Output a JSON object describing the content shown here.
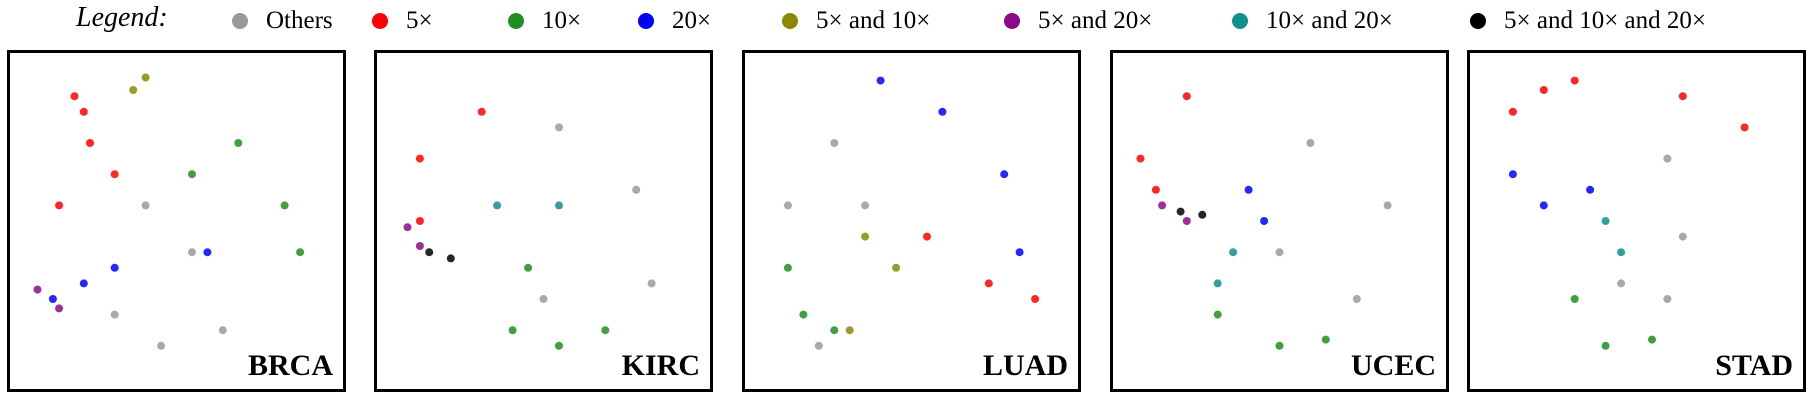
{
  "legend": {
    "title": "Legend:",
    "items": [
      {
        "key": "others",
        "label": "Others",
        "color": "#9a9a9a"
      },
      {
        "key": "x5",
        "label": "5×",
        "color": "#ff0000"
      },
      {
        "key": "x10",
        "label": "10×",
        "color": "#1f8f1f"
      },
      {
        "key": "x20",
        "label": "20×",
        "color": "#0000ff"
      },
      {
        "key": "x5_10",
        "label": "5× and 10×",
        "color": "#8a8a00"
      },
      {
        "key": "x5_20",
        "label": "5× and 20×",
        "color": "#8a0a8a"
      },
      {
        "key": "x10_20",
        "label": "10× and 20×",
        "color": "#0f8f8f"
      },
      {
        "key": "x5_10_20",
        "label": "5× and 10× and 20×",
        "color": "#000000"
      }
    ]
  },
  "chart_data": [
    {
      "type": "scatter",
      "label": "BRCA",
      "point_groups": [
        {
          "category": "x5",
          "points": [
            [
              0.17,
              0.1
            ],
            [
              0.22,
              0.25
            ],
            [
              0.12,
              0.45
            ],
            [
              0.3,
              0.35
            ],
            [
              0.2,
              0.15
            ]
          ]
        },
        {
          "category": "x5_10",
          "points": [
            [
              0.36,
              0.08
            ],
            [
              0.4,
              0.04
            ]
          ]
        },
        {
          "category": "x10",
          "points": [
            [
              0.55,
              0.35
            ],
            [
              0.7,
              0.25
            ],
            [
              0.85,
              0.45
            ],
            [
              0.9,
              0.6
            ]
          ]
        },
        {
          "category": "x20",
          "points": [
            [
              0.1,
              0.75
            ],
            [
              0.2,
              0.7
            ],
            [
              0.3,
              0.65
            ],
            [
              0.6,
              0.6
            ]
          ]
        },
        {
          "category": "x5_20",
          "points": [
            [
              0.05,
              0.72
            ],
            [
              0.12,
              0.78
            ]
          ]
        },
        {
          "category": "others",
          "points": [
            [
              0.4,
              0.45
            ],
            [
              0.55,
              0.6
            ],
            [
              0.65,
              0.85
            ],
            [
              0.45,
              0.9
            ],
            [
              0.3,
              0.8
            ]
          ]
        }
      ]
    },
    {
      "type": "scatter",
      "label": "KIRC",
      "point_groups": [
        {
          "category": "x5",
          "points": [
            [
              0.3,
              0.15
            ],
            [
              0.1,
              0.3
            ],
            [
              0.1,
              0.5
            ]
          ]
        },
        {
          "category": "x5_20",
          "points": [
            [
              0.06,
              0.52
            ],
            [
              0.1,
              0.58
            ]
          ]
        },
        {
          "category": "x5_10_20",
          "points": [
            [
              0.13,
              0.6
            ],
            [
              0.2,
              0.62
            ]
          ]
        },
        {
          "category": "x10_20",
          "points": [
            [
              0.35,
              0.45
            ],
            [
              0.55,
              0.45
            ]
          ]
        },
        {
          "category": "x10",
          "points": [
            [
              0.45,
              0.65
            ],
            [
              0.4,
              0.85
            ],
            [
              0.55,
              0.9
            ],
            [
              0.7,
              0.85
            ]
          ]
        },
        {
          "category": "others",
          "points": [
            [
              0.55,
              0.2
            ],
            [
              0.8,
              0.4
            ],
            [
              0.85,
              0.7
            ],
            [
              0.5,
              0.75
            ]
          ]
        }
      ]
    },
    {
      "type": "scatter",
      "label": "LUAD",
      "point_groups": [
        {
          "category": "x20",
          "points": [
            [
              0.4,
              0.05
            ],
            [
              0.6,
              0.15
            ],
            [
              0.8,
              0.35
            ],
            [
              0.85,
              0.6
            ]
          ]
        },
        {
          "category": "x5",
          "points": [
            [
              0.55,
              0.55
            ],
            [
              0.75,
              0.7
            ],
            [
              0.9,
              0.75
            ]
          ]
        },
        {
          "category": "x5_10",
          "points": [
            [
              0.35,
              0.55
            ],
            [
              0.45,
              0.65
            ],
            [
              0.3,
              0.85
            ]
          ]
        },
        {
          "category": "x10",
          "points": [
            [
              0.1,
              0.65
            ],
            [
              0.15,
              0.8
            ],
            [
              0.25,
              0.85
            ]
          ]
        },
        {
          "category": "others",
          "points": [
            [
              0.25,
              0.25
            ],
            [
              0.1,
              0.45
            ],
            [
              0.35,
              0.45
            ],
            [
              0.2,
              0.9
            ]
          ]
        }
      ]
    },
    {
      "type": "scatter",
      "label": "UCEC",
      "point_groups": [
        {
          "category": "x5",
          "points": [
            [
              0.2,
              0.1
            ],
            [
              0.05,
              0.3
            ],
            [
              0.1,
              0.4
            ]
          ]
        },
        {
          "category": "x5_20",
          "points": [
            [
              0.12,
              0.45
            ],
            [
              0.2,
              0.5
            ]
          ]
        },
        {
          "category": "x5_10_20",
          "points": [
            [
              0.18,
              0.47
            ],
            [
              0.25,
              0.48
            ]
          ]
        },
        {
          "category": "x20",
          "points": [
            [
              0.4,
              0.4
            ],
            [
              0.45,
              0.5
            ]
          ]
        },
        {
          "category": "x10_20",
          "points": [
            [
              0.35,
              0.6
            ],
            [
              0.3,
              0.7
            ]
          ]
        },
        {
          "category": "x10",
          "points": [
            [
              0.3,
              0.8
            ],
            [
              0.5,
              0.9
            ],
            [
              0.65,
              0.88
            ]
          ]
        },
        {
          "category": "others",
          "points": [
            [
              0.6,
              0.25
            ],
            [
              0.85,
              0.45
            ],
            [
              0.75,
              0.75
            ],
            [
              0.5,
              0.6
            ]
          ]
        }
      ]
    },
    {
      "type": "scatter",
      "label": "STAD",
      "point_groups": [
        {
          "category": "x5",
          "points": [
            [
              0.1,
              0.15
            ],
            [
              0.2,
              0.08
            ],
            [
              0.3,
              0.05
            ],
            [
              0.65,
              0.1
            ],
            [
              0.85,
              0.2
            ]
          ]
        },
        {
          "category": "x20",
          "points": [
            [
              0.1,
              0.35
            ],
            [
              0.2,
              0.45
            ],
            [
              0.35,
              0.4
            ]
          ]
        },
        {
          "category": "x10_20",
          "points": [
            [
              0.4,
              0.5
            ],
            [
              0.45,
              0.6
            ]
          ]
        },
        {
          "category": "x10",
          "points": [
            [
              0.3,
              0.75
            ],
            [
              0.4,
              0.9
            ],
            [
              0.55,
              0.88
            ]
          ]
        },
        {
          "category": "others",
          "points": [
            [
              0.6,
              0.3
            ],
            [
              0.65,
              0.55
            ],
            [
              0.6,
              0.75
            ],
            [
              0.45,
              0.7
            ]
          ]
        }
      ]
    }
  ]
}
